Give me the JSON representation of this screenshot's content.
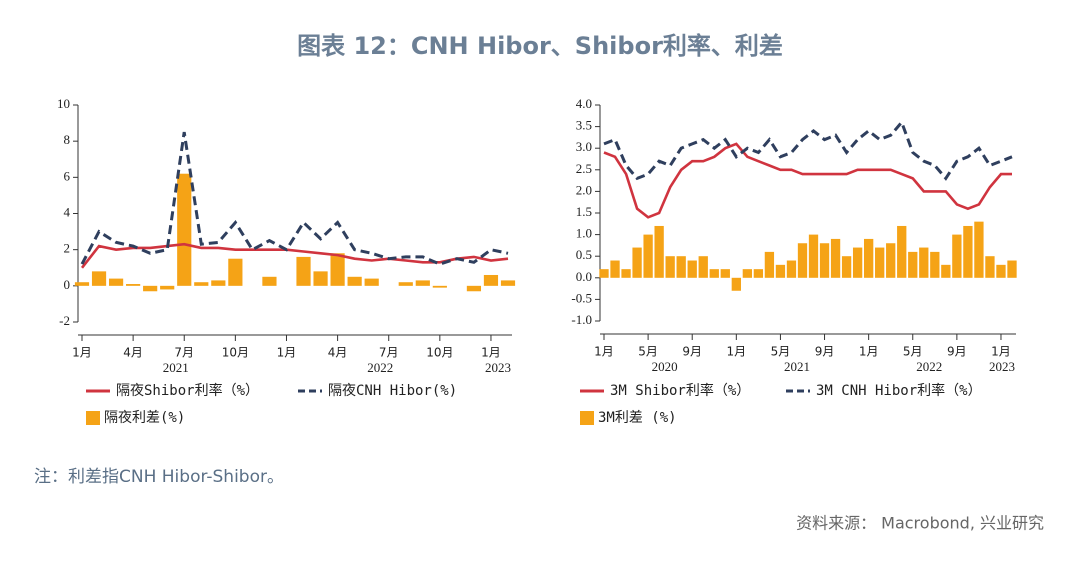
{
  "title": "图表 12：CNH Hibor、Shibor利率、利差",
  "note": "注：利差指CNH Hibor-Shibor。",
  "source": "资料来源： Macrobond, 兴业研究",
  "chart_data": [
    {
      "type": "line",
      "x": [
        "2021-01",
        "2021-02",
        "2021-03",
        "2021-04",
        "2021-05",
        "2021-06",
        "2021-07",
        "2021-08",
        "2021-09",
        "2021-10",
        "2021-11",
        "2021-12",
        "2022-01",
        "2022-02",
        "2022-03",
        "2022-04",
        "2022-05",
        "2022-06",
        "2022-07",
        "2022-08",
        "2022-09",
        "2022-10",
        "2022-11",
        "2022-12",
        "2023-01",
        "2023-02"
      ],
      "xticks": [
        {
          "value": "2021-01",
          "label": "1月"
        },
        {
          "value": "2021-04",
          "label": "4月"
        },
        {
          "value": "2021-07",
          "label": "7月"
        },
        {
          "value": "2021-10",
          "label": "10月"
        },
        {
          "value": "2022-01",
          "label": "1月"
        },
        {
          "value": "2022-04",
          "label": "4月"
        },
        {
          "value": "2022-07",
          "label": "7月"
        },
        {
          "value": "2022-10",
          "label": "10月"
        },
        {
          "value": "2023-01",
          "label": "1月"
        }
      ],
      "year_labels": [
        "2021",
        "2022",
        "2023"
      ],
      "ylim": [
        -2,
        10
      ],
      "yticks": [
        -2,
        0,
        2,
        4,
        6,
        8,
        10
      ],
      "series": [
        {
          "name": "隔夜Shibor利率（%）",
          "color": "#d0343f",
          "style": "line",
          "values": [
            1.0,
            2.2,
            2.0,
            2.1,
            2.1,
            2.2,
            2.3,
            2.1,
            2.1,
            2.0,
            2.0,
            2.0,
            2.0,
            1.9,
            1.8,
            1.7,
            1.5,
            1.4,
            1.5,
            1.4,
            1.3,
            1.3,
            1.5,
            1.6,
            1.4,
            1.5
          ]
        },
        {
          "name": "隔夜CNH Hibor(%)",
          "color": "#2f3f5e",
          "style": "dashed",
          "values": [
            1.2,
            3.0,
            2.4,
            2.2,
            1.8,
            2.0,
            8.5,
            2.3,
            2.4,
            3.5,
            2.0,
            2.5,
            2.0,
            3.5,
            2.6,
            3.5,
            2.0,
            1.8,
            1.5,
            1.6,
            1.6,
            1.2,
            1.5,
            1.3,
            2.0,
            1.8
          ]
        },
        {
          "name": "隔夜利差(%)",
          "color": "#f5a316",
          "style": "bar",
          "values": [
            0.2,
            0.8,
            0.4,
            0.1,
            -0.3,
            -0.2,
            6.2,
            0.2,
            0.3,
            1.5,
            0.0,
            0.5,
            0.0,
            1.6,
            0.8,
            1.8,
            0.5,
            0.4,
            0.0,
            0.2,
            0.3,
            -0.1,
            0.0,
            -0.3,
            0.6,
            0.3
          ]
        }
      ]
    },
    {
      "type": "line",
      "x": [
        "2020-01",
        "2020-02",
        "2020-03",
        "2020-04",
        "2020-05",
        "2020-06",
        "2020-07",
        "2020-08",
        "2020-09",
        "2020-10",
        "2020-11",
        "2020-12",
        "2021-01",
        "2021-02",
        "2021-03",
        "2021-04",
        "2021-05",
        "2021-06",
        "2021-07",
        "2021-08",
        "2021-09",
        "2021-10",
        "2021-11",
        "2021-12",
        "2022-01",
        "2022-02",
        "2022-03",
        "2022-04",
        "2022-05",
        "2022-06",
        "2022-07",
        "2022-08",
        "2022-09",
        "2022-10",
        "2022-11",
        "2022-12",
        "2023-01",
        "2023-02"
      ],
      "xticks": [
        {
          "value": "2020-01",
          "label": "1月"
        },
        {
          "value": "2020-05",
          "label": "5月"
        },
        {
          "value": "2020-09",
          "label": "9月"
        },
        {
          "value": "2021-01",
          "label": "1月"
        },
        {
          "value": "2021-05",
          "label": "5月"
        },
        {
          "value": "2021-09",
          "label": "9月"
        },
        {
          "value": "2022-01",
          "label": "1月"
        },
        {
          "value": "2022-05",
          "label": "5月"
        },
        {
          "value": "2022-09",
          "label": "9月"
        },
        {
          "value": "2023-01",
          "label": "1月"
        }
      ],
      "year_labels": [
        "2020",
        "2021",
        "2022",
        "2023"
      ],
      "ylim": [
        -1,
        4
      ],
      "yticks": [
        {
          "value": -1,
          "label": "-1.0"
        },
        -0.5,
        {
          "value": 0,
          "label": "0.0"
        },
        0.5,
        {
          "value": 1,
          "label": "1.0"
        },
        1.5,
        {
          "value": 2,
          "label": "2.0"
        },
        2.5,
        {
          "value": 3,
          "label": "3.0"
        },
        3.5,
        {
          "value": 4,
          "label": "4.0"
        }
      ],
      "series": [
        {
          "name": "3M Shibor利率（%）",
          "color": "#d0343f",
          "style": "line",
          "values": [
            2.9,
            2.8,
            2.4,
            1.6,
            1.4,
            1.5,
            2.1,
            2.5,
            2.7,
            2.7,
            2.8,
            3.0,
            3.1,
            2.8,
            2.7,
            2.6,
            2.5,
            2.5,
            2.4,
            2.4,
            2.4,
            2.4,
            2.4,
            2.5,
            2.5,
            2.5,
            2.5,
            2.4,
            2.3,
            2.0,
            2.0,
            2.0,
            1.7,
            1.6,
            1.7,
            2.1,
            2.4,
            2.4
          ]
        },
        {
          "name": "3M CNH Hibor利率（%）",
          "color": "#2f3f5e",
          "style": "dashed",
          "values": [
            3.1,
            3.2,
            2.6,
            2.3,
            2.4,
            2.7,
            2.6,
            3.0,
            3.1,
            3.2,
            3.0,
            3.2,
            2.8,
            3.0,
            2.9,
            3.2,
            2.8,
            2.9,
            3.2,
            3.4,
            3.2,
            3.3,
            2.9,
            3.2,
            3.4,
            3.2,
            3.3,
            3.6,
            2.9,
            2.7,
            2.6,
            2.3,
            2.7,
            2.8,
            3.0,
            2.6,
            2.7,
            2.8
          ]
        },
        {
          "name": "3M利差 (%)",
          "color": "#f5a316",
          "style": "bar",
          "values": [
            0.2,
            0.4,
            0.2,
            0.7,
            1.0,
            1.2,
            0.5,
            0.5,
            0.4,
            0.5,
            0.2,
            0.2,
            -0.3,
            0.2,
            0.2,
            0.6,
            0.3,
            0.4,
            0.8,
            1.0,
            0.8,
            0.9,
            0.5,
            0.7,
            0.9,
            0.7,
            0.8,
            1.2,
            0.6,
            0.7,
            0.6,
            0.3,
            1.0,
            1.2,
            1.3,
            0.5,
            0.3,
            0.4
          ]
        }
      ]
    }
  ]
}
